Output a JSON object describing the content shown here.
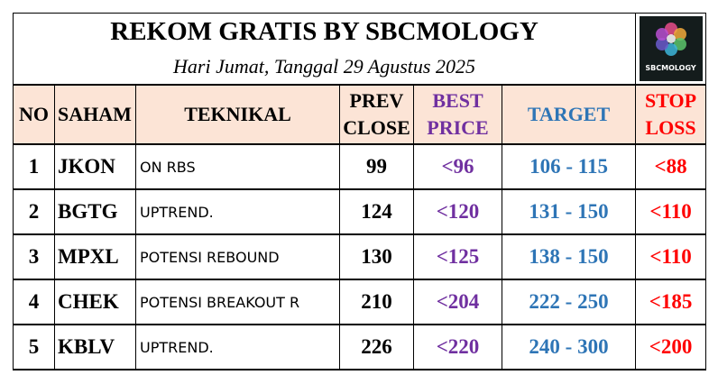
{
  "header": {
    "title": "REKOM GRATIS BY SBCMOLOGY",
    "subtitle": "Hari Jumat, Tanggal 29 Agustus 2025",
    "logo_text": "SBCMOLOGY"
  },
  "table": {
    "headers": [
      [
        "NO"
      ],
      [
        "SAHAM"
      ],
      [
        "TEKNIKAL"
      ],
      [
        "PREV",
        "CLOSE"
      ],
      [
        "BEST",
        "PRICE"
      ],
      [
        "TARGET"
      ],
      [
        "STOP",
        "LOSS"
      ]
    ],
    "rows": [
      [
        1,
        "JKON",
        "ON RBS",
        99,
        "<96",
        "106 - 115",
        "<88"
      ],
      [
        2,
        "BGTG",
        "UPTREND.",
        124,
        "<120",
        "131 - 150",
        "<110"
      ],
      [
        3,
        "MPXL",
        "POTENSI REBOUND",
        130,
        "<125",
        "138 - 150",
        "<110"
      ],
      [
        4,
        "CHEK",
        "POTENSI BREAKOUT R",
        210,
        "<204",
        "222 - 250",
        "<185"
      ],
      [
        5,
        "KBLV",
        "UPTREND.",
        226,
        "<220",
        "240 - 300",
        "<200"
      ]
    ]
  }
}
